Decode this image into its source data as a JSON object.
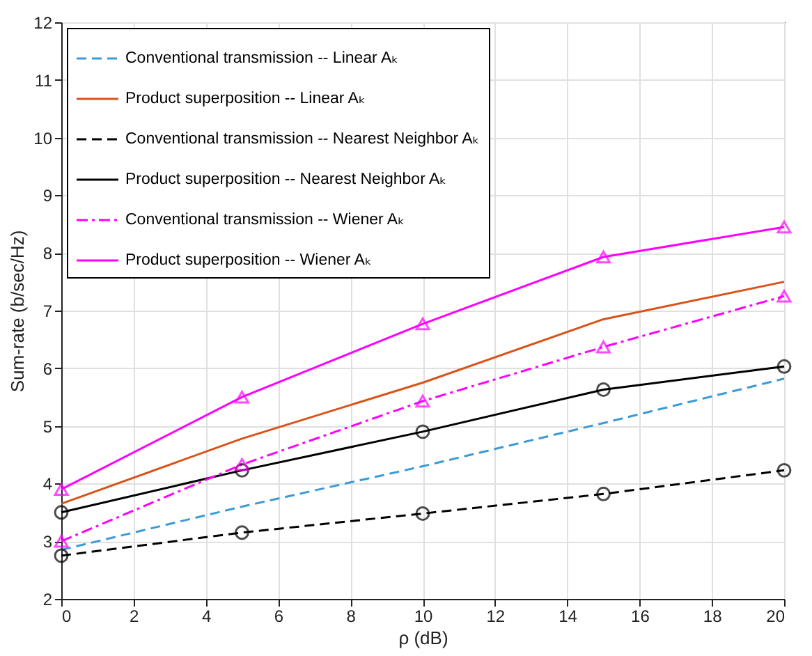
{
  "chart_data": {
    "type": "line",
    "xlabel": "ρ (dB)",
    "ylabel": "Sum-rate (b/sec/Hz)",
    "x": [
      0,
      5,
      10,
      15,
      20
    ],
    "xlim": [
      0,
      20
    ],
    "xticks": [
      0,
      2,
      4,
      6,
      8,
      10,
      12,
      14,
      16,
      18,
      20
    ],
    "ylim": [
      2,
      12
    ],
    "yticks": [
      2,
      3,
      4,
      5,
      6,
      7,
      8,
      9,
      10,
      11,
      12
    ],
    "grid": true,
    "legend": "top left",
    "series": [
      {
        "name": "Conventional transmission -- Linear Aₖ",
        "color": "#3b9ad8",
        "line_style": "dashed",
        "marker": "none",
        "values": [
          2.85,
          3.6,
          4.3,
          5.05,
          5.82
        ]
      },
      {
        "name": "Product superposition -- Linear Aₖ",
        "color": "#d95319",
        "line_style": "solid",
        "marker": "none",
        "values": [
          3.65,
          4.78,
          5.75,
          6.85,
          7.5
        ]
      },
      {
        "name": "Conventional transmission -- Nearest Neighbor Aₖ",
        "color": "#000000",
        "line_style": "dashed",
        "marker": "circle",
        "values": [
          2.75,
          3.15,
          3.48,
          3.82,
          4.23
        ]
      },
      {
        "name": "Product superposition -- Nearest Neighbor Aₖ",
        "color": "#000000",
        "line_style": "solid",
        "marker": "circle",
        "values": [
          3.5,
          4.23,
          4.9,
          5.63,
          6.03
        ]
      },
      {
        "name": "Conventional transmission -- Wiener Aₖ",
        "color": "#ff00ff",
        "line_style": "dashdot",
        "marker": "triangle",
        "values": [
          3.0,
          4.33,
          5.43,
          6.37,
          7.25
        ]
      },
      {
        "name": "Product superposition -- Wiener Aₖ",
        "color": "#ff00ff",
        "line_style": "solid",
        "marker": "triangle",
        "values": [
          3.9,
          5.5,
          6.77,
          7.93,
          8.45
        ]
      }
    ]
  }
}
